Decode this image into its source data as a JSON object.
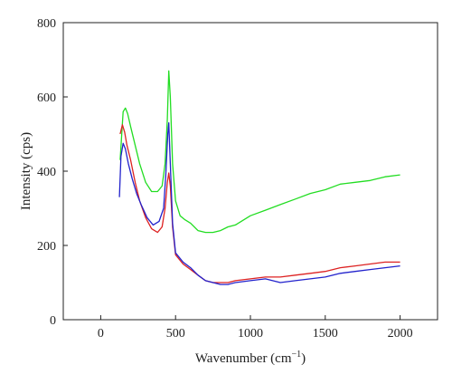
{
  "chart_data": {
    "type": "line",
    "title": "",
    "xlabel": "Wavenumber (cm",
    "xlabel_sup": "−1",
    "xlabel_suffix": ")",
    "ylabel": "Intensity (cps)",
    "xlim": [
      -250,
      2250
    ],
    "ylim": [
      0,
      800
    ],
    "xticks": [
      0,
      500,
      1000,
      1500,
      2000
    ],
    "xtick_labels": [
      "0",
      "500",
      "1000",
      "1500",
      "2000"
    ],
    "yticks": [
      0,
      200,
      400,
      600,
      800
    ],
    "ytick_labels": [
      "0",
      "200",
      "400",
      "600",
      "800"
    ],
    "grid": false,
    "legend": "none",
    "series": [
      {
        "color": "#22dd22",
        "x": [
          130,
          150,
          165,
          180,
          200,
          230,
          260,
          300,
          340,
          380,
          410,
          430,
          445,
          455,
          465,
          480,
          500,
          530,
          560,
          600,
          650,
          700,
          750,
          800,
          850,
          900,
          1000,
          1100,
          1200,
          1300,
          1400,
          1500,
          1600,
          1700,
          1800,
          1900,
          2000
        ],
        "y": [
          430,
          560,
          570,
          555,
          520,
          470,
          420,
          370,
          345,
          345,
          360,
          420,
          540,
          670,
          600,
          420,
          320,
          280,
          270,
          260,
          240,
          235,
          235,
          240,
          250,
          255,
          280,
          295,
          310,
          325,
          340,
          350,
          365,
          370,
          375,
          385,
          390
        ]
      },
      {
        "color": "#dd2222",
        "x": [
          130,
          145,
          160,
          175,
          200,
          230,
          260,
          300,
          340,
          380,
          410,
          430,
          445,
          455,
          465,
          480,
          500,
          550,
          600,
          650,
          700,
          750,
          800,
          850,
          900,
          1000,
          1100,
          1200,
          1300,
          1400,
          1500,
          1600,
          1700,
          1800,
          1900,
          2000
        ],
        "y": [
          500,
          525,
          505,
          470,
          430,
          370,
          320,
          275,
          245,
          235,
          250,
          300,
          370,
          395,
          360,
          250,
          175,
          150,
          135,
          120,
          105,
          100,
          100,
          100,
          105,
          110,
          115,
          115,
          120,
          125,
          130,
          140,
          145,
          150,
          155,
          155
        ]
      },
      {
        "color": "#2222cc",
        "x": [
          125,
          135,
          150,
          165,
          185,
          210,
          240,
          270,
          310,
          350,
          390,
          420,
          435,
          448,
          455,
          465,
          480,
          500,
          550,
          600,
          650,
          700,
          750,
          800,
          850,
          900,
          1000,
          1100,
          1200,
          1300,
          1400,
          1500,
          1600,
          1700,
          1800,
          1900,
          2000
        ],
        "y": [
          330,
          440,
          475,
          460,
          420,
          380,
          340,
          310,
          275,
          255,
          265,
          300,
          390,
          500,
          530,
          420,
          260,
          180,
          155,
          140,
          120,
          105,
          100,
          95,
          95,
          100,
          105,
          110,
          100,
          105,
          110,
          115,
          125,
          130,
          135,
          140,
          145
        ]
      }
    ]
  }
}
